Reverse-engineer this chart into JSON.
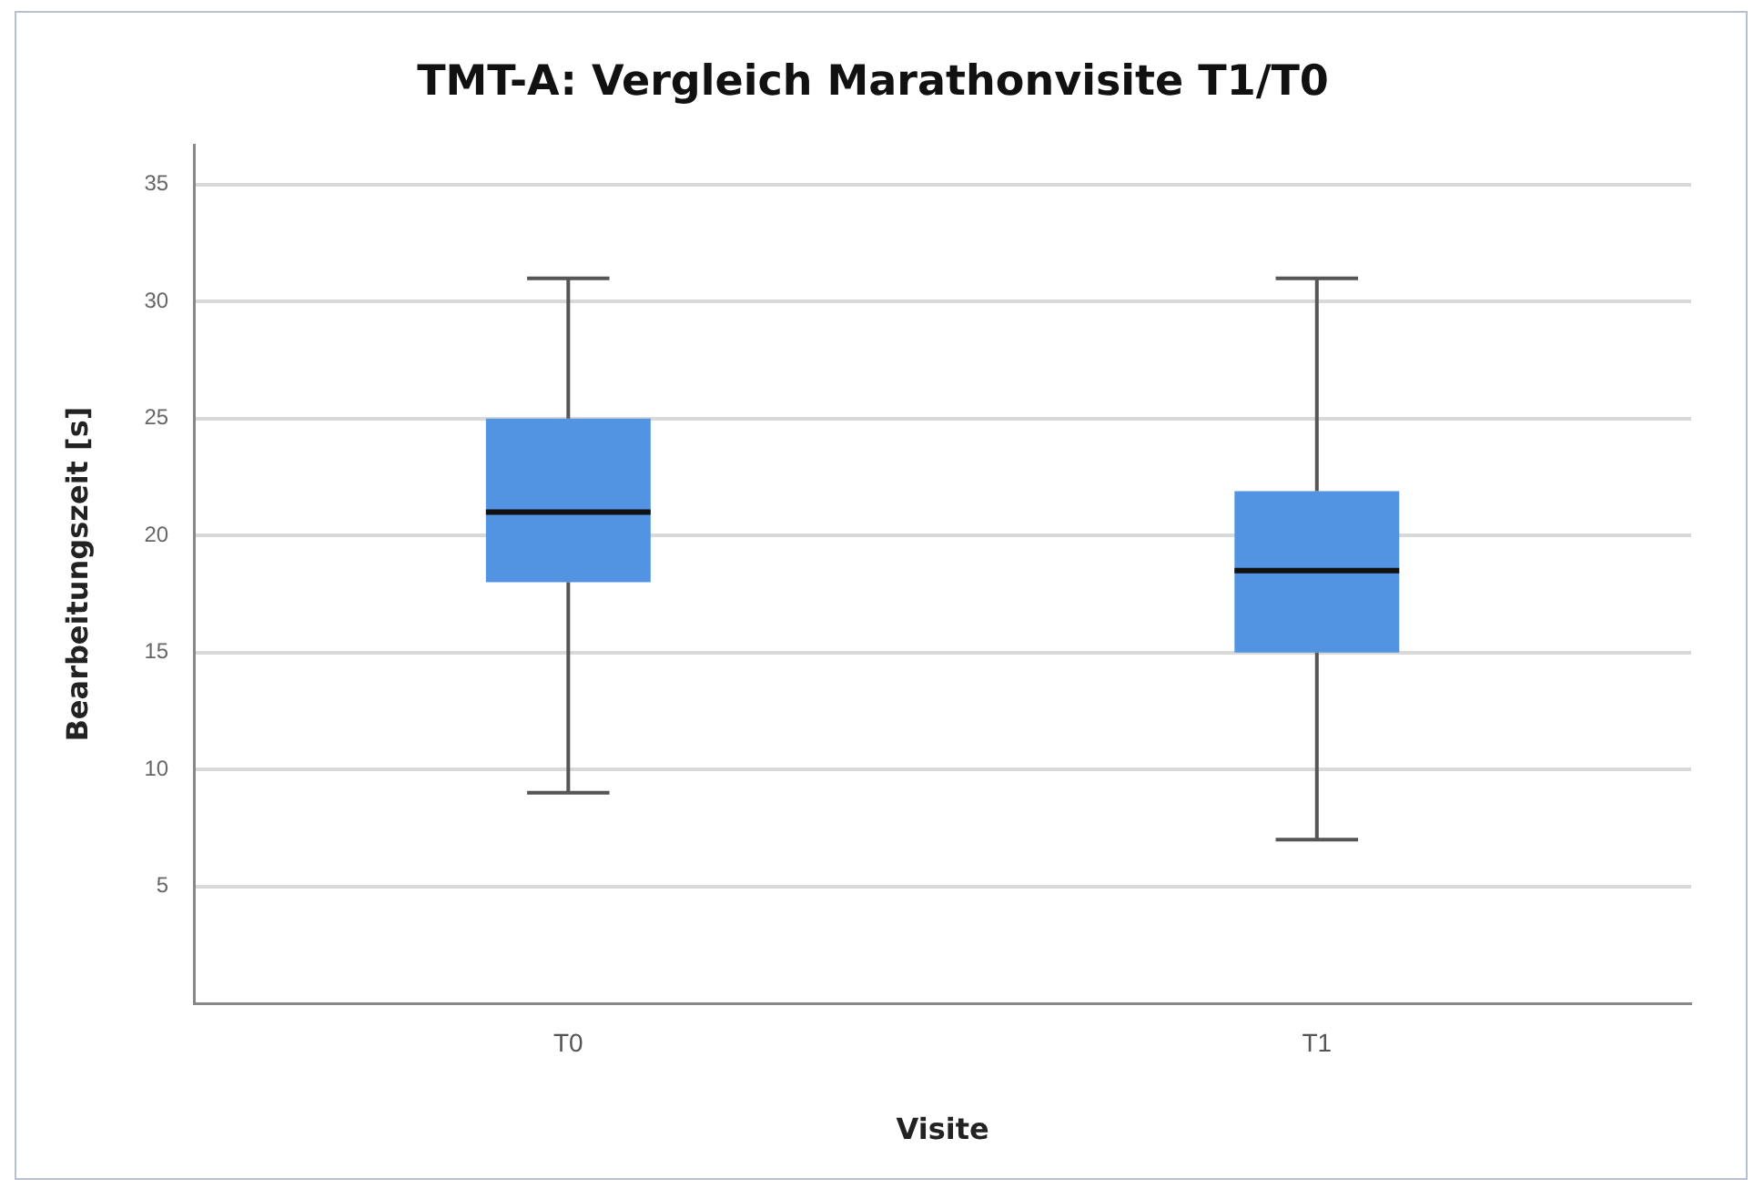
{
  "chart_data": {
    "type": "box",
    "title": "TMT-A: Vergleich Marathonvisite T1/T0",
    "xlabel": "Visite",
    "ylabel": "Bearbeitungszeit [s]",
    "categories": [
      "T0",
      "T1"
    ],
    "boxes": [
      {
        "low": 9,
        "q1": 18,
        "median": 21,
        "q3": 25,
        "high": 31
      },
      {
        "low": 7,
        "q1": 15,
        "median": 18.5,
        "q3": 21.9,
        "high": 31
      }
    ],
    "color": "#5294e2",
    "ylim": [
      0,
      36.7
    ],
    "yticks": [
      5,
      10,
      15,
      20,
      25,
      30,
      35
    ],
    "grid": "y",
    "legend": false
  }
}
